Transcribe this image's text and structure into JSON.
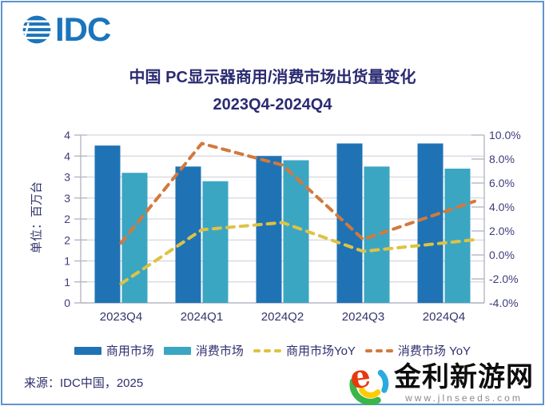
{
  "brand": {
    "name": "IDC",
    "logo_color": "#1b75bc"
  },
  "title": {
    "line1": "中国 PC显示器商用/消费市场出货量变化",
    "line2": "2023Q4-2024Q4"
  },
  "chart_data": {
    "type": "combo-bar-line",
    "categories": [
      "2023Q4",
      "2024Q1",
      "2024Q2",
      "2024Q3",
      "2024Q4"
    ],
    "series": [
      {
        "name": "商用市场",
        "type": "bar",
        "axis": "left",
        "color": "#1f73b4",
        "values": [
          3.75,
          3.25,
          3.5,
          3.8,
          3.8
        ]
      },
      {
        "name": "消费市场",
        "type": "bar",
        "axis": "left",
        "color": "#3ba6c2",
        "values": [
          3.1,
          2.9,
          3.4,
          3.25,
          3.2
        ]
      },
      {
        "name": "商用市场YoY",
        "type": "dashed-line",
        "axis": "right",
        "color": "#dfc243",
        "values": [
          -2.4,
          2.1,
          2.7,
          0.3,
          1.0
        ]
      },
      {
        "name": "消费市场 YoY",
        "type": "dashed-line",
        "axis": "right",
        "color": "#d3793c",
        "values": [
          1.0,
          9.3,
          7.5,
          1.3,
          3.6
        ]
      }
    ],
    "left_axis": {
      "title": "单位：百万台",
      "min": 0,
      "max": 4,
      "step": 0.5,
      "tick_labels_bottom_up": [
        "0",
        "1",
        "1",
        "2",
        "2",
        "3",
        "3",
        "4",
        "4"
      ]
    },
    "right_axis": {
      "min": -4,
      "max": 10,
      "step": 2,
      "tick_labels_bottom_up": [
        "-4.0%",
        "-2.0%",
        "0.0%",
        "2.0%",
        "4.0%",
        "6.0%",
        "8.0%",
        "10.0%"
      ]
    },
    "grid": true,
    "legend_position": "bottom"
  },
  "source": "来源：IDC中国，2025",
  "watermark": {
    "site_name": "金利新游网",
    "site_url": "www.jlnseeds.com"
  },
  "colors": {
    "grid": "#cdccd8",
    "axis": "#b7b7c6",
    "tick_text": "#3c3c7c",
    "xlabel_text": "#34346d",
    "border": "#5e95cc"
  }
}
